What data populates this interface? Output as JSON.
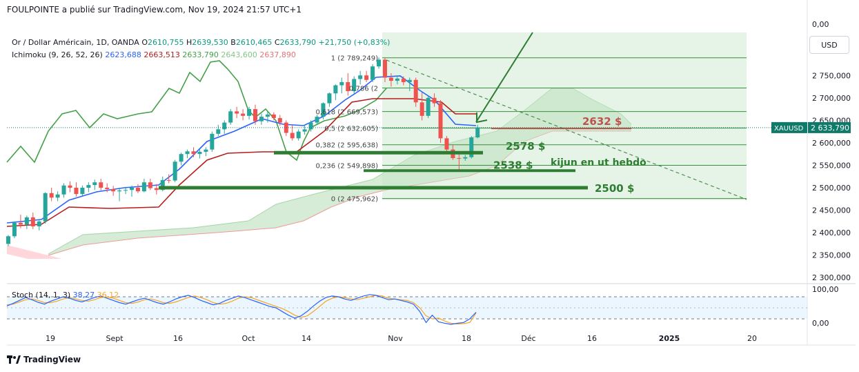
{
  "header": {
    "publisher": "FOULPOINTE a publié sur TradingView.com, Nov 19, 2024 21:57 UTC+1",
    "symbol": "Or / Dollar Américain, 1D, OANDA",
    "ohlc": {
      "o_label": "O",
      "o": "2610,755",
      "h_label": "H",
      "h": "2639,530",
      "b_label": "B",
      "b": "2610,465",
      "c_label": "C",
      "c": "2633,790",
      "change": "+21,750 (+0,83%)"
    },
    "ichimoku": {
      "name": "Ichimoku (9, 26, 52, 26)",
      "v1": "2623,688",
      "v2": "2663,513",
      "v3": "2633,790",
      "v4": "2643,600",
      "v5": "2637,890"
    },
    "currency_button": "USD",
    "stoch": {
      "name": "Stoch (14, 1, 3)",
      "k": "38,27",
      "d": "36,12"
    },
    "branding": "TradingView"
  },
  "colors": {
    "up": "#26a69a",
    "down": "#ef5350",
    "tenkan": "#2962ff",
    "kijun": "#b71c1c",
    "chikou": "#43a047",
    "cloud": "#c8e6c9",
    "cloud_red": "#ffcdd2",
    "drawing": "#2e7d32",
    "stoch_k": "#2962ff",
    "stoch_d": "#f5a623",
    "price_tag": "#0f7a6a"
  },
  "chart_data": {
    "type": "candlestick",
    "price_axis": {
      "ticks": [
        "2 300,000",
        "2 350,000",
        "2 400,000",
        "2 450,000",
        "2 500,000",
        "2 550,000",
        "2 600,000",
        "2 650,000",
        "2 700,000",
        "2 750,000"
      ],
      "top_label": "0,00",
      "range": [
        2275,
        2920
      ]
    },
    "stoch_axis": {
      "ticks": [
        "100,00",
        "0,00"
      ],
      "levels": [
        80,
        20
      ]
    },
    "time_axis": [
      "19",
      "Sept",
      "16",
      "Oct",
      "14",
      "Nov",
      "18",
      "Déc",
      "16",
      "2025",
      "20"
    ],
    "last_price": {
      "symbol": "XAUUSD",
      "value": "2 633,790",
      "price": 2633.79
    },
    "candles": [
      {
        "o": 2375,
        "h": 2395,
        "l": 2370,
        "c": 2392
      },
      {
        "o": 2392,
        "h": 2425,
        "l": 2388,
        "c": 2422
      },
      {
        "o": 2422,
        "h": 2440,
        "l": 2410,
        "c": 2418
      },
      {
        "o": 2418,
        "h": 2438,
        "l": 2408,
        "c": 2434
      },
      {
        "o": 2434,
        "h": 2445,
        "l": 2408,
        "c": 2414
      },
      {
        "o": 2414,
        "h": 2430,
        "l": 2405,
        "c": 2425
      },
      {
        "o": 2425,
        "h": 2490,
        "l": 2420,
        "c": 2488
      },
      {
        "o": 2488,
        "h": 2500,
        "l": 2470,
        "c": 2478
      },
      {
        "o": 2478,
        "h": 2492,
        "l": 2470,
        "c": 2485
      },
      {
        "o": 2485,
        "h": 2510,
        "l": 2478,
        "c": 2505
      },
      {
        "o": 2505,
        "h": 2514,
        "l": 2490,
        "c": 2500
      },
      {
        "o": 2500,
        "h": 2512,
        "l": 2480,
        "c": 2486
      },
      {
        "o": 2486,
        "h": 2505,
        "l": 2482,
        "c": 2500
      },
      {
        "o": 2500,
        "h": 2512,
        "l": 2490,
        "c": 2506
      },
      {
        "o": 2506,
        "h": 2518,
        "l": 2495,
        "c": 2512
      },
      {
        "o": 2512,
        "h": 2520,
        "l": 2494,
        "c": 2500
      },
      {
        "o": 2500,
        "h": 2510,
        "l": 2490,
        "c": 2497
      },
      {
        "o": 2497,
        "h": 2504,
        "l": 2482,
        "c": 2492
      },
      {
        "o": 2492,
        "h": 2500,
        "l": 2470,
        "c": 2494
      },
      {
        "o": 2494,
        "h": 2502,
        "l": 2486,
        "c": 2495
      },
      {
        "o": 2495,
        "h": 2505,
        "l": 2480,
        "c": 2500
      },
      {
        "o": 2500,
        "h": 2508,
        "l": 2488,
        "c": 2492
      },
      {
        "o": 2492,
        "h": 2520,
        "l": 2490,
        "c": 2512
      },
      {
        "o": 2512,
        "h": 2520,
        "l": 2495,
        "c": 2499
      },
      {
        "o": 2499,
        "h": 2508,
        "l": 2485,
        "c": 2495
      },
      {
        "o": 2495,
        "h": 2525,
        "l": 2492,
        "c": 2517
      },
      {
        "o": 2517,
        "h": 2530,
        "l": 2510,
        "c": 2516
      },
      {
        "o": 2516,
        "h": 2562,
        "l": 2512,
        "c": 2558
      },
      {
        "o": 2558,
        "h": 2578,
        "l": 2550,
        "c": 2575
      },
      {
        "o": 2575,
        "h": 2585,
        "l": 2566,
        "c": 2581
      },
      {
        "o": 2581,
        "h": 2590,
        "l": 2568,
        "c": 2575
      },
      {
        "o": 2575,
        "h": 2585,
        "l": 2565,
        "c": 2580
      },
      {
        "o": 2580,
        "h": 2590,
        "l": 2570,
        "c": 2585
      },
      {
        "o": 2585,
        "h": 2625,
        "l": 2580,
        "c": 2620
      },
      {
        "o": 2620,
        "h": 2640,
        "l": 2615,
        "c": 2630
      },
      {
        "o": 2630,
        "h": 2650,
        "l": 2620,
        "c": 2645
      },
      {
        "o": 2645,
        "h": 2675,
        "l": 2640,
        "c": 2670
      },
      {
        "o": 2670,
        "h": 2680,
        "l": 2655,
        "c": 2665
      },
      {
        "o": 2665,
        "h": 2675,
        "l": 2650,
        "c": 2660
      },
      {
        "o": 2660,
        "h": 2680,
        "l": 2652,
        "c": 2675
      },
      {
        "o": 2675,
        "h": 2685,
        "l": 2640,
        "c": 2648
      },
      {
        "o": 2648,
        "h": 2665,
        "l": 2640,
        "c": 2658
      },
      {
        "o": 2658,
        "h": 2670,
        "l": 2645,
        "c": 2663
      },
      {
        "o": 2663,
        "h": 2668,
        "l": 2650,
        "c": 2655
      },
      {
        "o": 2655,
        "h": 2662,
        "l": 2638,
        "c": 2645
      },
      {
        "o": 2645,
        "h": 2650,
        "l": 2615,
        "c": 2622
      },
      {
        "o": 2622,
        "h": 2640,
        "l": 2605,
        "c": 2610
      },
      {
        "o": 2610,
        "h": 2630,
        "l": 2605,
        "c": 2625
      },
      {
        "o": 2625,
        "h": 2640,
        "l": 2618,
        "c": 2630
      },
      {
        "o": 2630,
        "h": 2650,
        "l": 2625,
        "c": 2645
      },
      {
        "o": 2645,
        "h": 2662,
        "l": 2640,
        "c": 2658
      },
      {
        "o": 2658,
        "h": 2690,
        "l": 2652,
        "c": 2688
      },
      {
        "o": 2688,
        "h": 2712,
        "l": 2680,
        "c": 2710
      },
      {
        "o": 2710,
        "h": 2730,
        "l": 2695,
        "c": 2728
      },
      {
        "o": 2728,
        "h": 2745,
        "l": 2710,
        "c": 2735
      },
      {
        "o": 2735,
        "h": 2755,
        "l": 2705,
        "c": 2715
      },
      {
        "o": 2715,
        "h": 2748,
        "l": 2710,
        "c": 2742
      },
      {
        "o": 2742,
        "h": 2760,
        "l": 2730,
        "c": 2750
      },
      {
        "o": 2750,
        "h": 2760,
        "l": 2735,
        "c": 2740
      },
      {
        "o": 2740,
        "h": 2775,
        "l": 2735,
        "c": 2770
      },
      {
        "o": 2770,
        "h": 2790,
        "l": 2765,
        "c": 2785
      },
      {
        "o": 2785,
        "h": 2789,
        "l": 2735,
        "c": 2745
      },
      {
        "o": 2745,
        "h": 2755,
        "l": 2725,
        "c": 2738
      },
      {
        "o": 2738,
        "h": 2750,
        "l": 2730,
        "c": 2743
      },
      {
        "o": 2743,
        "h": 2748,
        "l": 2728,
        "c": 2735
      },
      {
        "o": 2735,
        "h": 2745,
        "l": 2715,
        "c": 2740
      },
      {
        "o": 2740,
        "h": 2745,
        "l": 2680,
        "c": 2690
      },
      {
        "o": 2690,
        "h": 2712,
        "l": 2650,
        "c": 2660
      },
      {
        "o": 2660,
        "h": 2705,
        "l": 2655,
        "c": 2700
      },
      {
        "o": 2700,
        "h": 2710,
        "l": 2680,
        "c": 2688
      },
      {
        "o": 2688,
        "h": 2695,
        "l": 2600,
        "c": 2610
      },
      {
        "o": 2610,
        "h": 2615,
        "l": 2575,
        "c": 2585
      },
      {
        "o": 2585,
        "h": 2595,
        "l": 2562,
        "c": 2566
      },
      {
        "o": 2566,
        "h": 2575,
        "l": 2537,
        "c": 2565
      },
      {
        "o": 2565,
        "h": 2573,
        "l": 2560,
        "c": 2568
      },
      {
        "o": 2568,
        "h": 2615,
        "l": 2565,
        "c": 2612
      },
      {
        "o": 2612,
        "h": 2640,
        "l": 2610,
        "c": 2634
      }
    ],
    "fib": [
      {
        "label": "1 (2 789,249)",
        "price": 2789.249
      },
      {
        "label": "0,786 (2 ",
        "price": 2722
      },
      {
        "label": "0,618 (2 669,573)",
        "price": 2669.573
      },
      {
        "label": "0,5 (2 632,605)",
        "price": 2632.605
      },
      {
        "label": "0,382 (2 595,638)",
        "price": 2595.638
      },
      {
        "label": "0,236 (2 549,898)",
        "price": 2549.898
      },
      {
        "label": "0 (2 475,962)",
        "price": 2475.962
      }
    ],
    "annotations": [
      {
        "text": "2632 $",
        "price": 2632,
        "color": "#c0504d"
      },
      {
        "text": "2578 $",
        "price": 2578,
        "color": "#2e7d32"
      },
      {
        "text": "2538 $",
        "price": 2538,
        "color": "#2e7d32"
      },
      {
        "text": "kijun en ut hebdo",
        "price": 2552,
        "color": "#2e7d32"
      },
      {
        "text": "2500 $",
        "price": 2500,
        "color": "#2e7d32"
      }
    ],
    "stoch_k": [
      55,
      62,
      70,
      78,
      72,
      65,
      60,
      68,
      74,
      80,
      76,
      70,
      66,
      72,
      78,
      82,
      76,
      70,
      64,
      60,
      66,
      72,
      76,
      70,
      64,
      60,
      66,
      74,
      80,
      84,
      78,
      70,
      64,
      58,
      62,
      70,
      76,
      82,
      78,
      72,
      66,
      60,
      54,
      50,
      40,
      30,
      22,
      28,
      40,
      55,
      68,
      78,
      82,
      80,
      74,
      70,
      76,
      82,
      86,
      84,
      78,
      72,
      74,
      70,
      66,
      60,
      40,
      10,
      30,
      12,
      8,
      5,
      8,
      10,
      20,
      38
    ],
    "stoch_d": [
      58,
      60,
      66,
      72,
      74,
      70,
      64,
      64,
      68,
      74,
      78,
      74,
      70,
      68,
      72,
      78,
      80,
      76,
      70,
      64,
      62,
      66,
      72,
      74,
      70,
      64,
      62,
      66,
      72,
      78,
      82,
      78,
      72,
      64,
      60,
      62,
      68,
      76,
      80,
      78,
      72,
      66,
      60,
      54,
      48,
      40,
      30,
      24,
      28,
      40,
      54,
      68,
      76,
      80,
      78,
      74,
      72,
      76,
      80,
      84,
      82,
      76,
      74,
      72,
      70,
      64,
      50,
      28,
      20,
      22,
      14,
      8,
      6,
      7,
      10,
      36
    ]
  }
}
